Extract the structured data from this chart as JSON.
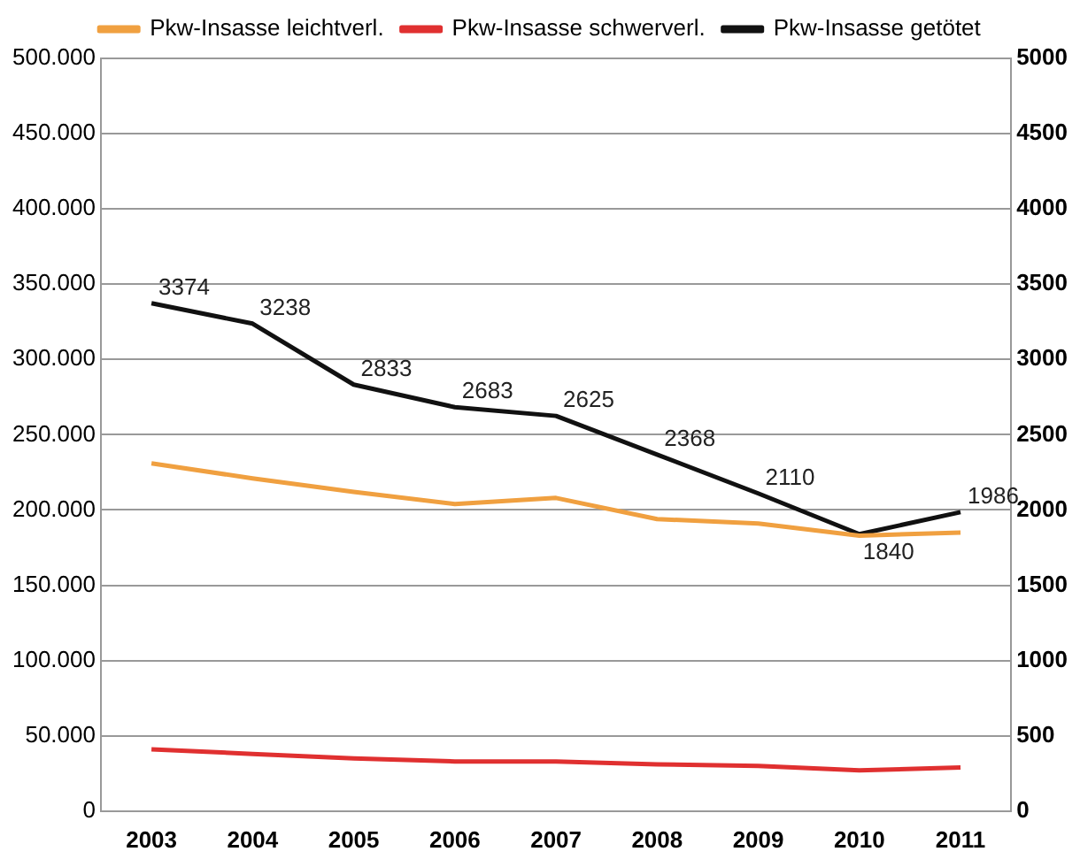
{
  "chart_data": {
    "type": "line",
    "categories": [
      "2003",
      "2004",
      "2005",
      "2006",
      "2007",
      "2008",
      "2009",
      "2010",
      "2011"
    ],
    "series": [
      {
        "name": "Pkw-Insasse leichtverl.",
        "color": "#f0a040",
        "values": [
          231000,
          221000,
          212000,
          204000,
          208000,
          194000,
          191000,
          183000,
          185000
        ]
      },
      {
        "name": "Pkw-Insasse schwerverl.",
        "color": "#e03030",
        "values": [
          41000,
          38000,
          35000,
          33000,
          33000,
          31000,
          30000,
          27000,
          29000
        ]
      },
      {
        "name": "Pkw-Insasse getötet",
        "color": "#111111",
        "axis": "y2",
        "values": [
          3374,
          3238,
          2833,
          2683,
          2625,
          2368,
          2110,
          1840,
          1986
        ],
        "value_labels": [
          "3374",
          "3238",
          "2833",
          "2683",
          "2625",
          "2368",
          "2110",
          "1840",
          "1986"
        ]
      }
    ],
    "ylim": [
      0,
      500000
    ],
    "yticks": [
      0,
      {
        "value": 50000,
        "label": "50.000"
      },
      {
        "value": 100000,
        "label": "100.000"
      },
      {
        "value": 150000,
        "label": "150.000"
      },
      {
        "value": 200000,
        "label": "200.000"
      },
      {
        "value": 250000,
        "label": "250.000"
      },
      {
        "value": 300000,
        "label": "300.000"
      },
      {
        "value": 350000,
        "label": "350.000"
      },
      {
        "value": 400000,
        "label": "400.000"
      },
      {
        "value": 450000,
        "label": "450.000"
      },
      {
        "value": 500000,
        "label": "500.000"
      }
    ],
    "y2lim": [
      0,
      5000
    ],
    "y2ticks": [
      0,
      500,
      1000,
      1500,
      2000,
      2500,
      3000,
      3500,
      4000,
      4500,
      5000
    ],
    "grid": "y",
    "legend": "top",
    "marker": "none",
    "line_style": "solid"
  }
}
